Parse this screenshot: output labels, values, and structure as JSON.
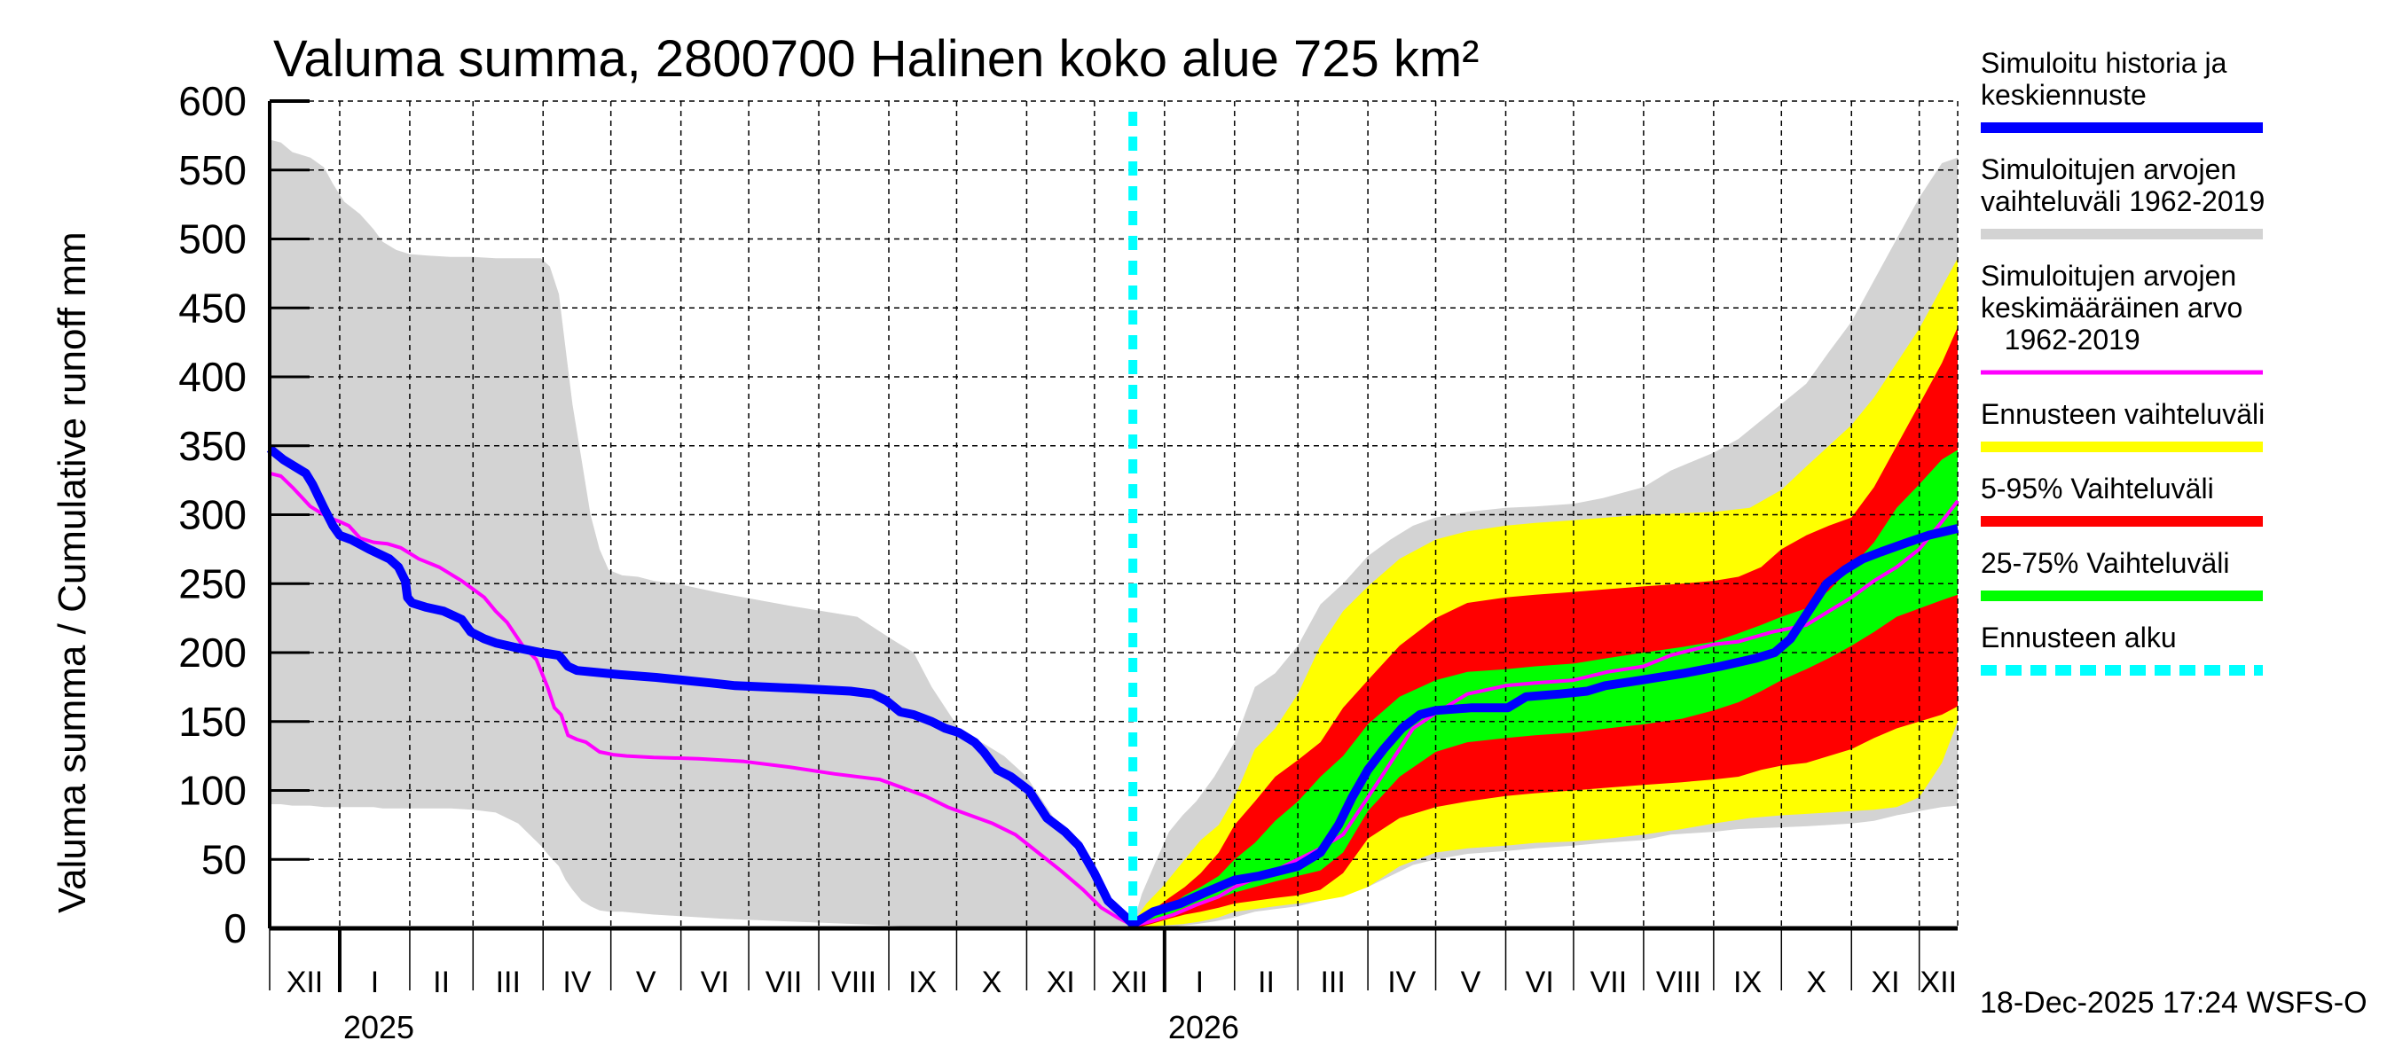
{
  "chart_data": {
    "type": "area",
    "title": "Valuma summa, 2800700 Halinen koko alue 725 km²",
    "ylabel": "Valuma summa / Cumulative runoff    mm",
    "xlabel": "",
    "x_unit": "days since 2024-12-01",
    "xlim": [
      0,
      747
    ],
    "ylim": [
      0,
      600
    ],
    "yticks": [
      0,
      50,
      100,
      150,
      200,
      250,
      300,
      350,
      400,
      450,
      500,
      550,
      600
    ],
    "grid": true,
    "legend_position": "right",
    "month_ticks": [
      {
        "label": "XII",
        "start": 0
      },
      {
        "label": "I",
        "start": 31
      },
      {
        "label": "II",
        "start": 62
      },
      {
        "label": "III",
        "start": 90
      },
      {
        "label": "IV",
        "start": 121
      },
      {
        "label": "V",
        "start": 151
      },
      {
        "label": "VI",
        "start": 182
      },
      {
        "label": "VII",
        "start": 212
      },
      {
        "label": "VIII",
        "start": 243
      },
      {
        "label": "IX",
        "start": 274
      },
      {
        "label": "X",
        "start": 304
      },
      {
        "label": "XI",
        "start": 335
      },
      {
        "label": "XII",
        "start": 365
      },
      {
        "label": "I",
        "start": 396
      },
      {
        "label": "II",
        "start": 427
      },
      {
        "label": "III",
        "start": 455
      },
      {
        "label": "IV",
        "start": 486
      },
      {
        "label": "V",
        "start": 516
      },
      {
        "label": "VI",
        "start": 547
      },
      {
        "label": "VII",
        "start": 577
      },
      {
        "label": "VIII",
        "start": 608
      },
      {
        "label": "IX",
        "start": 639
      },
      {
        "label": "X",
        "start": 669
      },
      {
        "label": "XI",
        "start": 700
      },
      {
        "label": "XII",
        "start": 730
      }
    ],
    "year_ticks": [
      {
        "label": "2025",
        "at": 31
      },
      {
        "label": "2026",
        "at": 396
      }
    ],
    "forecast_start": 382,
    "timestamp": "18-Dec-2025 17:24 WSFS-O",
    "series": [
      {
        "name": "Simuloitujen arvojen vaihteluväli 1962-2019",
        "kind": "band",
        "color": "#d3d3d3",
        "x": [
          0,
          5,
          10,
          18,
          24,
          28,
          33,
          40,
          46,
          50,
          56,
          62,
          70,
          80,
          90,
          100,
          110,
          120,
          124,
          128,
          131,
          134,
          138,
          142,
          146,
          150,
          156,
          163,
          170,
          180,
          200,
          230,
          260,
          275,
          285,
          293,
          305,
          315,
          325,
          335,
          345,
          355,
          362,
          368,
          372,
          376,
          380,
          382
        ],
        "upper": [
          572,
          570,
          563,
          559,
          552,
          540,
          527,
          518,
          507,
          498,
          492,
          489,
          488,
          487,
          487,
          486,
          486,
          486,
          480,
          460,
          420,
          380,
          340,
          300,
          275,
          260,
          256,
          255,
          252,
          250,
          243,
          234,
          226,
          210,
          200,
          175,
          145,
          135,
          125,
          110,
          85,
          60,
          45,
          30,
          20,
          12,
          6,
          3
        ],
        "lower": [
          90,
          90,
          89,
          89,
          88,
          88,
          88,
          88,
          88,
          87,
          87,
          87,
          87,
          87,
          86,
          84,
          76,
          60,
          52,
          45,
          35,
          28,
          20,
          16,
          13,
          12,
          12,
          11,
          10,
          9,
          7,
          5,
          3,
          2,
          1,
          1,
          1,
          0,
          0,
          0,
          0,
          0,
          0,
          0,
          0,
          0,
          0,
          0
        ],
        "x_fc": [
          382,
          386,
          392,
          398,
          404,
          410,
          418,
          427,
          436,
          445,
          455,
          465,
          475,
          486,
          496,
          506,
          516,
          530,
          547,
          560,
          577,
          590,
          608,
          620,
          639,
          650,
          665,
          680,
          690,
          700,
          710,
          720,
          730,
          740,
          747
        ],
        "upper_fc": [
          3,
          25,
          48,
          70,
          82,
          92,
          110,
          135,
          175,
          185,
          205,
          235,
          250,
          270,
          282,
          292,
          298,
          302,
          305,
          306,
          308,
          312,
          320,
          332,
          345,
          355,
          375,
          395,
          418,
          440,
          470,
          500,
          530,
          555,
          559
        ],
        "lower_fc": [
          0,
          0,
          0,
          1,
          2,
          3,
          5,
          8,
          12,
          14,
          16,
          20,
          24,
          30,
          38,
          46,
          50,
          54,
          56,
          58,
          60,
          62,
          64,
          68,
          70,
          72,
          73,
          74,
          75,
          76,
          78,
          82,
          85,
          88,
          89
        ]
      },
      {
        "name": "Ennusteen vaihteluväli",
        "kind": "band",
        "color": "#ffff00",
        "x": [
          382,
          388,
          395,
          404,
          412,
          420,
          427,
          436,
          445,
          455,
          465,
          475,
          486,
          500,
          516,
          530,
          547,
          560,
          577,
          592,
          608,
          625,
          639,
          655,
          669,
          680,
          690,
          700,
          710,
          720,
          730,
          740,
          747
        ],
        "upper": [
          4,
          18,
          30,
          48,
          64,
          75,
          95,
          130,
          145,
          170,
          205,
          230,
          248,
          268,
          282,
          288,
          292,
          294,
          296,
          298,
          300,
          301,
          302,
          305,
          318,
          335,
          350,
          365,
          385,
          410,
          435,
          465,
          486
        ],
        "lower": [
          0,
          1,
          2,
          3,
          5,
          8,
          12,
          14,
          16,
          18,
          20,
          23,
          30,
          45,
          55,
          58,
          60,
          62,
          63,
          65,
          68,
          72,
          76,
          80,
          82,
          83,
          84,
          85,
          86,
          88,
          95,
          120,
          150
        ]
      },
      {
        "name": "5-95% Vaihteluväli",
        "kind": "band",
        "color": "#ff0000",
        "x": [
          382,
          390,
          398,
          405,
          412,
          420,
          427,
          436,
          445,
          455,
          465,
          475,
          486,
          500,
          516,
          530,
          547,
          560,
          577,
          592,
          608,
          625,
          639,
          650,
          660,
          669,
          680,
          690,
          700,
          710,
          720,
          730,
          740,
          747
        ],
        "upper": [
          3,
          12,
          22,
          30,
          40,
          55,
          75,
          92,
          110,
          122,
          135,
          160,
          180,
          205,
          225,
          236,
          240,
          242,
          244,
          246,
          248,
          250,
          252,
          255,
          262,
          275,
          285,
          292,
          298,
          320,
          350,
          380,
          410,
          436
        ],
        "lower": [
          0,
          3,
          7,
          10,
          12,
          15,
          18,
          20,
          22,
          24,
          28,
          40,
          65,
          80,
          88,
          92,
          96,
          98,
          100,
          102,
          104,
          106,
          108,
          110,
          115,
          118,
          120,
          125,
          130,
          138,
          145,
          150,
          155,
          161
        ]
      },
      {
        "name": "25-75% Vaihteluväli",
        "kind": "band",
        "color": "#00ff00",
        "x": [
          382,
          390,
          398,
          405,
          412,
          420,
          427,
          436,
          445,
          455,
          465,
          475,
          486,
          500,
          516,
          530,
          547,
          560,
          577,
          592,
          608,
          625,
          639,
          650,
          660,
          669,
          680,
          690,
          700,
          710,
          720,
          730,
          740,
          747
        ],
        "upper": [
          3,
          9,
          16,
          24,
          30,
          38,
          50,
          62,
          78,
          92,
          110,
          125,
          148,
          168,
          180,
          186,
          188,
          190,
          192,
          196,
          200,
          204,
          208,
          214,
          220,
          226,
          232,
          245,
          262,
          280,
          305,
          322,
          340,
          347
        ],
        "lower": [
          1,
          5,
          10,
          15,
          19,
          22,
          26,
          30,
          34,
          38,
          42,
          55,
          85,
          110,
          128,
          135,
          138,
          140,
          142,
          145,
          148,
          152,
          158,
          164,
          172,
          180,
          188,
          196,
          205,
          215,
          226,
          232,
          238,
          242
        ]
      },
      {
        "name": "Simuloitujen arvojen keskimääräinen arvo 1962-2019",
        "kind": "line",
        "color": "#ff00ff",
        "x": [
          0,
          5,
          10,
          14,
          18,
          22,
          26,
          31,
          35,
          40,
          46,
          52,
          58,
          62,
          66,
          75,
          85,
          95,
          100,
          105,
          112,
          118,
          123,
          126,
          129,
          132,
          136,
          140,
          146,
          152,
          158,
          170,
          190,
          210,
          230,
          250,
          270,
          280,
          290,
          300,
          310,
          320,
          330,
          340,
          350,
          360,
          368,
          375,
          382,
          390,
          400,
          410,
          420,
          427,
          436,
          445,
          455,
          465,
          475,
          486,
          496,
          506,
          516,
          530,
          547,
          560,
          577,
          592,
          608,
          620,
          639,
          650,
          665,
          680,
          690,
          700,
          710,
          720,
          730,
          740,
          747
        ],
        "y": [
          330,
          328,
          320,
          313,
          306,
          302,
          298,
          295,
          292,
          283,
          280,
          279,
          276,
          272,
          268,
          262,
          252,
          240,
          230,
          222,
          205,
          195,
          175,
          160,
          155,
          140,
          137,
          135,
          128,
          126,
          125,
          124,
          123,
          121,
          117,
          112,
          108,
          102,
          96,
          88,
          82,
          76,
          68,
          55,
          42,
          28,
          15,
          8,
          2,
          5,
          10,
          17,
          23,
          30,
          36,
          42,
          50,
          58,
          68,
          95,
          120,
          145,
          156,
          170,
          176,
          178,
          180,
          186,
          190,
          198,
          206,
          208,
          215,
          220,
          230,
          240,
          252,
          262,
          275,
          295,
          310
        ]
      },
      {
        "name": "Simuloitu historia ja keskiennuste",
        "kind": "line",
        "color": "#0000ff",
        "x": [
          0,
          6,
          16,
          19,
          24,
          28,
          31,
          36,
          44,
          53,
          57,
          60,
          61,
          63,
          69,
          77,
          85,
          89,
          95,
          100,
          108,
          120,
          128,
          132,
          136,
          155,
          171,
          183,
          195,
          206,
          234,
          257,
          267,
          273,
          279,
          285,
          293,
          299,
          305,
          312,
          316,
          322,
          328,
          336,
          344,
          352,
          358,
          365,
          371,
          379,
          382,
          384,
          391,
          403,
          414,
          427,
          438,
          455,
          465,
          473,
          479,
          486,
          493,
          501,
          509,
          516,
          532,
          548,
          556,
          571,
          583,
          591,
          607,
          626,
          642,
          658,
          666,
          673,
          681,
          689,
          697,
          705,
          713,
          725,
          734,
          747
        ],
        "y": [
          348,
          340,
          330,
          322,
          305,
          292,
          285,
          282,
          275,
          268,
          262,
          252,
          240,
          236,
          233,
          230,
          224,
          215,
          210,
          207,
          204,
          200,
          198,
          190,
          187,
          184,
          182,
          180,
          178,
          176,
          174,
          172,
          170,
          165,
          157,
          155,
          150,
          145,
          142,
          135,
          128,
          115,
          110,
          100,
          80,
          70,
          60,
          40,
          20,
          8,
          3,
          5,
          12,
          18,
          26,
          35,
          38,
          45,
          55,
          75,
          95,
          115,
          130,
          145,
          155,
          158,
          160,
          160,
          168,
          170,
          172,
          176,
          180,
          185,
          190,
          196,
          200,
          210,
          230,
          250,
          260,
          268,
          273,
          280,
          285,
          290
        ]
      }
    ],
    "legend": [
      {
        "label_lines": [
          "Simuloitu historia ja",
          "keskiennuste"
        ],
        "color": "#0000ff",
        "style": "solid"
      },
      {
        "label_lines": [
          "Simuloitujen arvojen",
          "vaihteluväli 1962-2019"
        ],
        "color": "#d3d3d3",
        "style": "solid"
      },
      {
        "label_lines": [
          "Simuloitujen arvojen",
          "keskimääräinen arvo",
          "   1962-2019"
        ],
        "color": "#ff00ff",
        "style": "thin"
      },
      {
        "label_lines": [
          "Ennusteen vaihteluväli"
        ],
        "color": "#ffff00",
        "style": "solid"
      },
      {
        "label_lines": [
          "5-95% Vaihteluväli"
        ],
        "color": "#ff0000",
        "style": "solid"
      },
      {
        "label_lines": [
          "25-75% Vaihteluväli"
        ],
        "color": "#00ff00",
        "style": "solid"
      },
      {
        "label_lines": [
          "Ennusteen alku"
        ],
        "color": "#00ffff",
        "style": "dashed"
      }
    ]
  }
}
